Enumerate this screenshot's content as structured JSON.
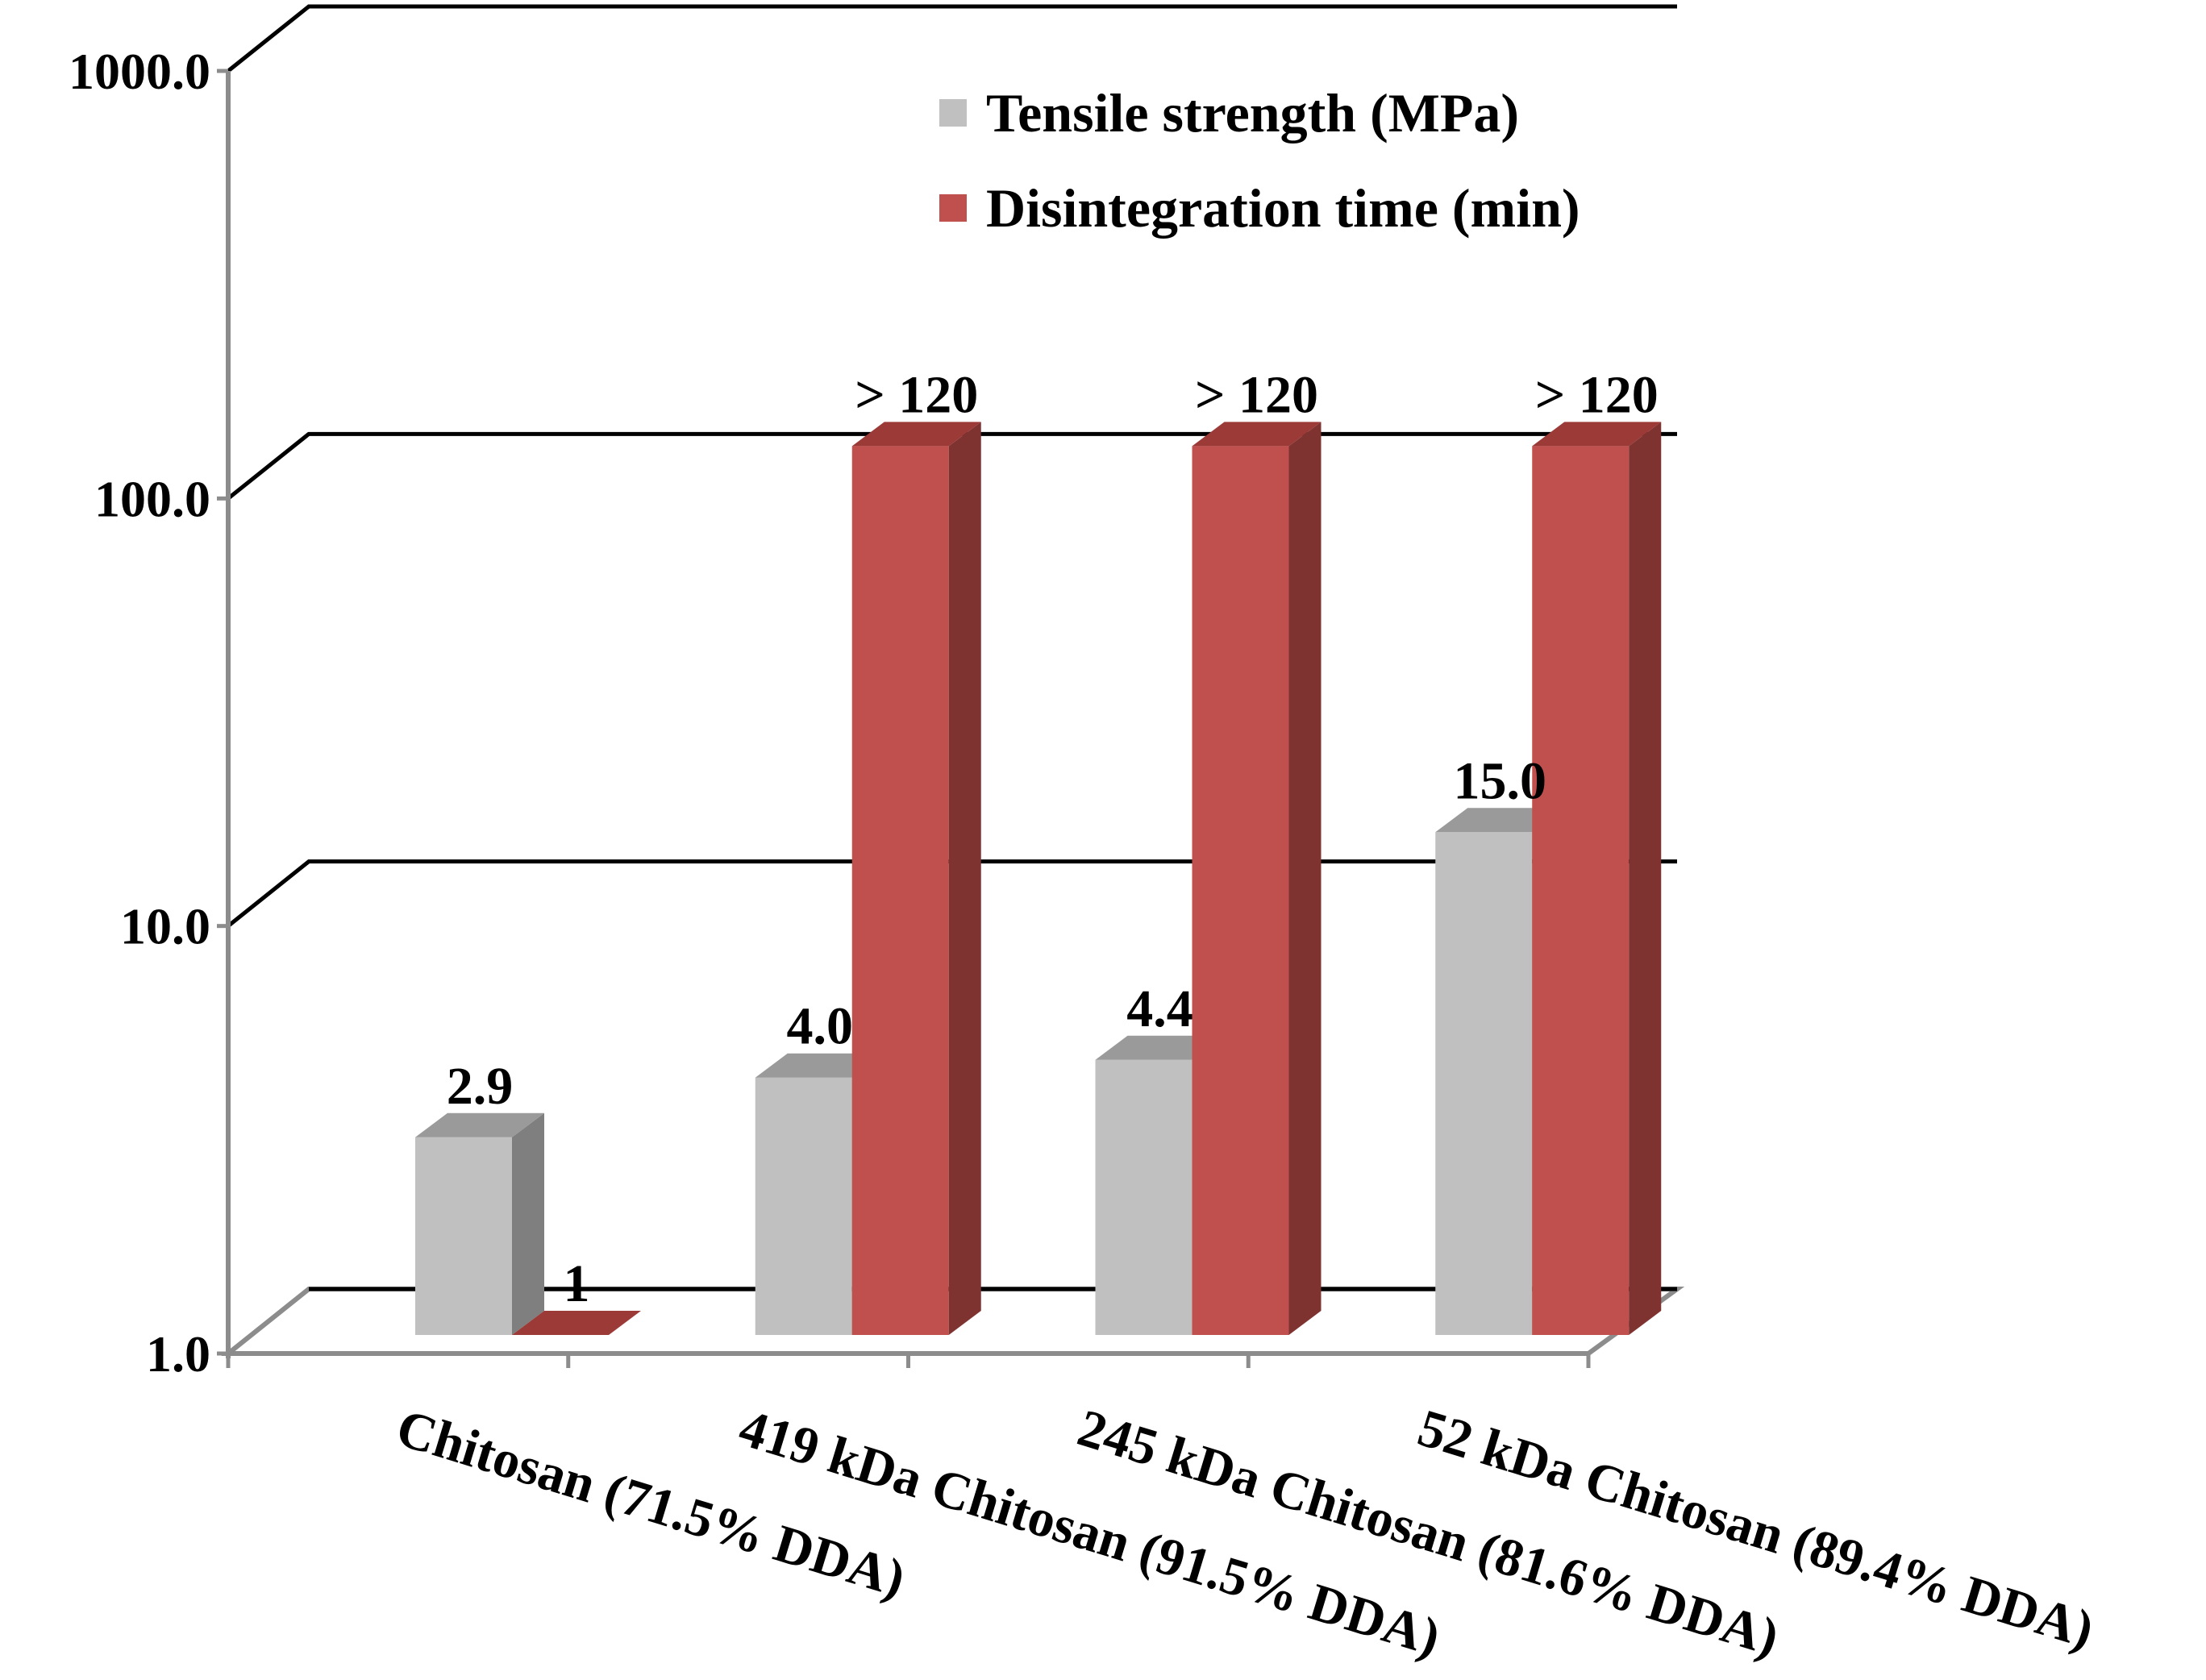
{
  "chart_data": {
    "type": "bar",
    "title": "",
    "xlabel": "",
    "ylabel": "",
    "yscale": "log",
    "ylim": [
      1.0,
      1000.0
    ],
    "y_ticks": [
      {
        "value": 1,
        "label": "1.0"
      },
      {
        "value": 10,
        "label": "10.0"
      },
      {
        "value": 100,
        "label": "100.0"
      },
      {
        "value": 1000,
        "label": "1000.0"
      }
    ],
    "grid": true,
    "legend_position": "top-right",
    "categories": [
      "Chitosan (71.5% DDA)",
      "419 kDa Chitosan (91.5% DDA)",
      "245 kDa Chitosan (81.6% DDA)",
      "52 kDa Chitosan (89.4% DDA)"
    ],
    "series": [
      {
        "name": "Tensile strength (MPa)",
        "color": "#c0c0c0",
        "top_color": "#9a9a9a",
        "side_color": "#7f7f7f",
        "values": [
          2.9,
          4.0,
          4.4,
          15.0
        ],
        "labels": [
          "2.9",
          "4.0",
          "4.4",
          "15.0"
        ]
      },
      {
        "name": "Disintegration time (min)",
        "color": "#c0504d",
        "top_color": "#9b3a37",
        "side_color": "#7f3331",
        "values": [
          1,
          120,
          120,
          120
        ],
        "labels": [
          "1",
          "> 120",
          "> 120",
          "> 120"
        ]
      }
    ]
  }
}
